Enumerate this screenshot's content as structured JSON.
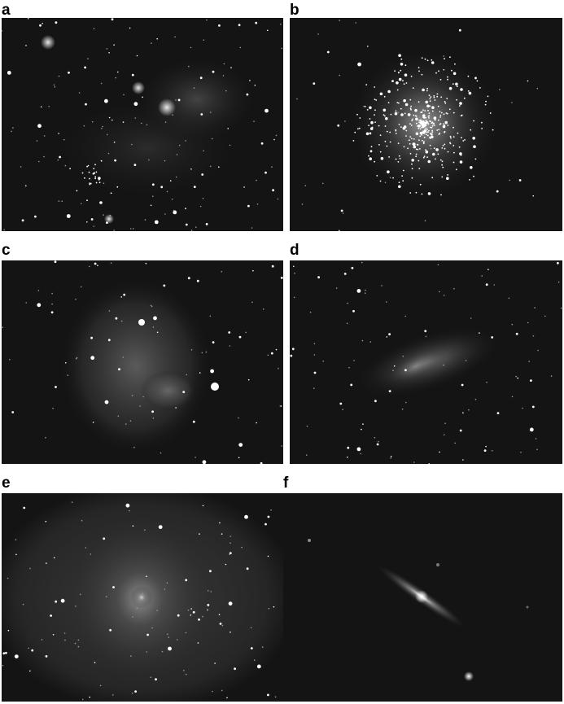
{
  "figure": {
    "panels": [
      {
        "label": "a",
        "subject": "open-cluster-with-nebula"
      },
      {
        "label": "b",
        "subject": "globular-cluster"
      },
      {
        "label": "c",
        "subject": "dumbbell-nebula"
      },
      {
        "label": "d",
        "subject": "omega-nebula"
      },
      {
        "label": "e",
        "subject": "spiral-galaxy-face-on"
      },
      {
        "label": "f",
        "subject": "sombrero-galaxy-edge-on"
      }
    ]
  },
  "colors": {
    "background": "#ffffff",
    "sky": "#141414",
    "star": "#ffffff"
  }
}
